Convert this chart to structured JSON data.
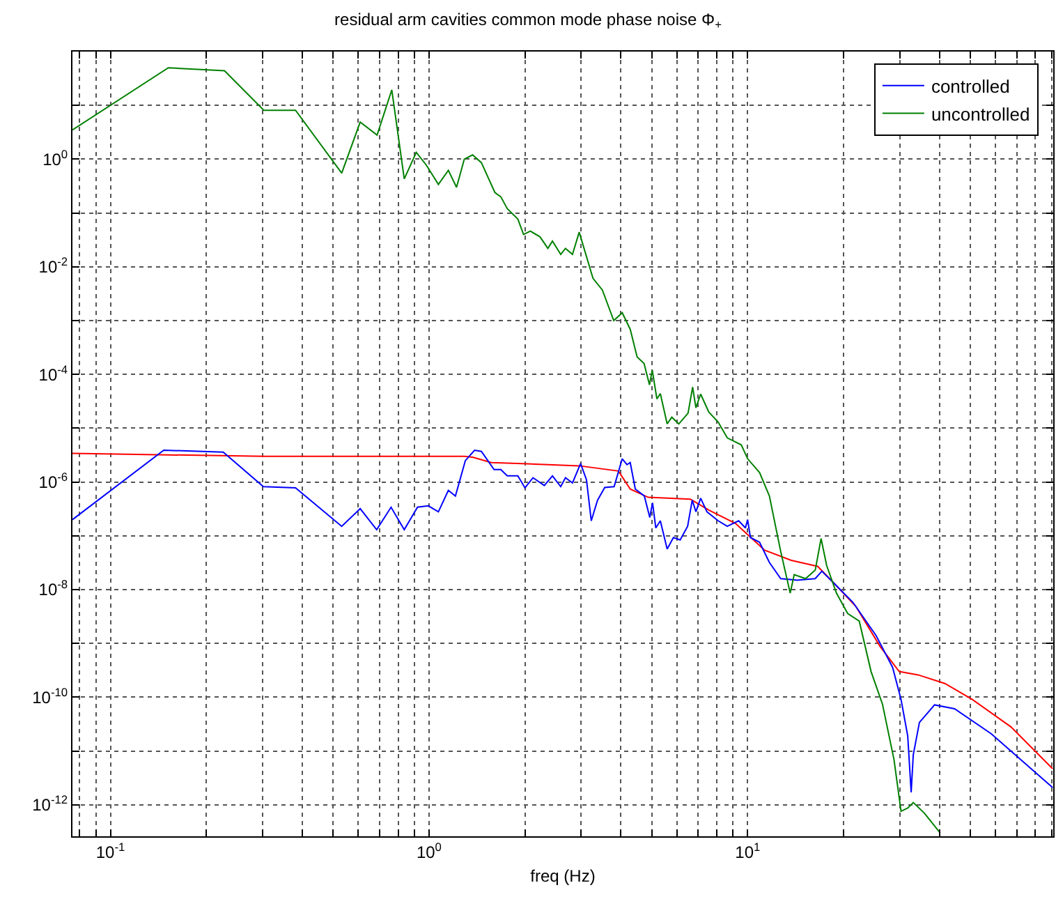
{
  "chart_data": {
    "type": "line",
    "title": "residual arm cavities common mode phase noise Φ$_{+}$",
    "xlabel": "freq (Hz)",
    "log": "xy",
    "grid": true,
    "legend": "top right",
    "marker": "none",
    "line_style": "solid",
    "xlim": [
      0.076,
      91
    ],
    "ylim": [
      2.6e-13,
      100
    ],
    "xticks": [
      {
        "value": 0.08,
        "label": null
      },
      {
        "value": 0.09,
        "label": null
      },
      {
        "value": 0.1,
        "label": "10$^{-1}$"
      },
      {
        "value": 0.2,
        "label": null
      },
      {
        "value": 0.3,
        "label": null
      },
      {
        "value": 0.4,
        "label": null
      },
      {
        "value": 0.5,
        "label": null
      },
      {
        "value": 0.6,
        "label": null
      },
      {
        "value": 0.7,
        "label": null
      },
      {
        "value": 0.8,
        "label": null
      },
      {
        "value": 0.9,
        "label": null
      },
      {
        "value": 1,
        "label": "10$^{0}$"
      },
      {
        "value": 2,
        "label": null
      },
      {
        "value": 3,
        "label": null
      },
      {
        "value": 4,
        "label": null
      },
      {
        "value": 5,
        "label": null
      },
      {
        "value": 6,
        "label": null
      },
      {
        "value": 7,
        "label": null
      },
      {
        "value": 8,
        "label": null
      },
      {
        "value": 9,
        "label": null
      },
      {
        "value": 10,
        "label": "10$^{1}$"
      },
      {
        "value": 20,
        "label": null
      },
      {
        "value": 30,
        "label": null
      },
      {
        "value": 40,
        "label": null
      },
      {
        "value": 50,
        "label": null
      },
      {
        "value": 60,
        "label": null
      },
      {
        "value": 70,
        "label": null
      },
      {
        "value": 80,
        "label": null
      },
      {
        "value": 90,
        "label": null
      }
    ],
    "yticks": [
      {
        "value": 1e-12,
        "label": "10$^{-12}$"
      },
      {
        "value": 1e-11,
        "label": null
      },
      {
        "value": 1e-10,
        "label": "10$^{-10}$"
      },
      {
        "value": 1e-09,
        "label": null
      },
      {
        "value": 1e-08,
        "label": "10$^{-8}$"
      },
      {
        "value": 1e-07,
        "label": null
      },
      {
        "value": 1e-06,
        "label": "10$^{-6}$"
      },
      {
        "value": 1e-05,
        "label": null
      },
      {
        "value": 0.0001,
        "label": "10$^{-4}$"
      },
      {
        "value": 0.001,
        "label": null
      },
      {
        "value": 0.01,
        "label": "10$^{-2}$"
      },
      {
        "value": 0.1,
        "label": null
      },
      {
        "value": 1,
        "label": "10$^{0}$"
      },
      {
        "value": 10,
        "label": null
      }
    ],
    "series": [
      {
        "name": "controlled",
        "color": "#0000ff",
        "x": [
          0.076,
          0.147,
          0.226,
          0.302,
          0.381,
          0.532,
          0.608,
          0.685,
          0.76,
          0.836,
          0.92,
          0.995,
          1.07,
          1.15,
          1.21,
          1.3,
          1.39,
          1.46,
          1.6,
          1.68,
          1.76,
          1.9,
          2.0,
          2.12,
          2.3,
          2.44,
          2.59,
          2.68,
          2.82,
          2.99,
          3.12,
          3.23,
          3.38,
          3.56,
          3.81,
          4.04,
          4.18,
          4.28,
          4.44,
          4.74,
          4.93,
          5.03,
          5.15,
          5.32,
          5.59,
          5.85,
          6.14,
          6.48,
          6.7,
          6.88,
          7.12,
          7.45,
          8.08,
          8.63,
          9.37,
          9.84,
          10.0,
          10.2,
          10.9,
          11.7,
          12.7,
          14.3,
          16.3,
          17.1,
          18.7,
          21.4,
          25.3,
          28.5,
          30.3,
          31.8,
          32.6,
          33.1,
          34.6,
          38.6,
          44.6,
          58.1,
          90.6
        ],
        "values": [
          2e-07,
          3.9e-06,
          3.6e-06,
          8.2e-07,
          7.8e-07,
          1.5e-07,
          3.2e-07,
          1.3e-07,
          3.4e-07,
          1.3e-07,
          3.4e-07,
          3.6e-07,
          2.8e-07,
          7e-07,
          5.5e-07,
          2.5e-06,
          3.9e-06,
          3.7e-06,
          1.7e-06,
          1.7e-06,
          1.3e-06,
          1.3e-06,
          7.8e-07,
          1.2e-06,
          8.6e-07,
          1.3e-06,
          8.2e-07,
          1.2e-06,
          9.6e-07,
          2.2e-06,
          1.1e-06,
          1.9e-07,
          4.6e-07,
          7.9e-07,
          8.2e-07,
          2.7e-06,
          2.1e-06,
          2.3e-06,
          7.4e-07,
          5.5e-07,
          2.2e-07,
          4.1e-07,
          1.4e-07,
          1.9e-07,
          5.7e-08,
          9.3e-08,
          8.4e-08,
          1.5e-07,
          4.6e-07,
          2.8e-07,
          5e-07,
          2.8e-07,
          1.9e-07,
          1.5e-07,
          1.9e-07,
          1.4e-07,
          2e-07,
          9.3e-08,
          7.6e-08,
          3.2e-08,
          1.6e-08,
          1.5e-08,
          1.6e-08,
          2.2e-08,
          1.3e-08,
          5.8e-09,
          1.4e-09,
          3.6e-10,
          9.1e-11,
          1.9e-11,
          1.7e-12,
          8.5e-12,
          3.4e-11,
          7.2e-11,
          6.1e-11,
          2.1e-11,
          2.1e-12
        ]
      },
      {
        "name": "uncontrolled",
        "color": "#008000",
        "x": [
          0.076,
          0.152,
          0.228,
          0.303,
          0.381,
          0.532,
          0.608,
          0.687,
          0.764,
          0.836,
          0.912,
          0.98,
          1.07,
          1.15,
          1.22,
          1.29,
          1.37,
          1.46,
          1.61,
          1.68,
          1.76,
          1.9,
          1.98,
          2.08,
          2.23,
          2.36,
          2.44,
          2.59,
          2.68,
          2.82,
          2.96,
          3.27,
          3.5,
          3.8,
          4.04,
          4.28,
          4.5,
          4.73,
          4.92,
          5.02,
          5.19,
          5.32,
          5.59,
          5.78,
          6.08,
          6.5,
          6.72,
          6.88,
          7.12,
          7.55,
          8.08,
          8.63,
          9.55,
          10.0,
          10.9,
          11.7,
          12.7,
          13.6,
          14.0,
          15.2,
          16.3,
          17.0,
          17.7,
          19.0,
          20.6,
          22.4,
          24.4,
          26.5,
          28.8,
          30.3,
          31.8,
          33.1,
          35.8,
          40.2
        ],
        "values": [
          3.5,
          50,
          44,
          8.1,
          8.1,
          0.55,
          4.9,
          2.8,
          19.4,
          0.43,
          1.34,
          0.78,
          0.34,
          0.62,
          0.3,
          1.0,
          1.2,
          0.86,
          0.24,
          0.2,
          0.12,
          0.077,
          0.04,
          0.046,
          0.036,
          0.022,
          0.03,
          0.017,
          0.022,
          0.017,
          0.044,
          0.0061,
          0.0037,
          0.001,
          0.0014,
          0.00069,
          0.00021,
          0.00016,
          6.4e-05,
          0.00012,
          3.5e-05,
          4.4e-05,
          1.2e-05,
          1.6e-05,
          1.2e-05,
          1.9e-05,
          5.8e-05,
          2.4e-05,
          4.3e-05,
          2e-05,
          1.3e-05,
          6.6e-06,
          4.9e-06,
          2.7e-06,
          1.5e-06,
          5.5e-07,
          5.1e-08,
          8.6e-09,
          1.9e-08,
          1.6e-08,
          2.3e-08,
          8.9e-08,
          2.8e-08,
          8.6e-09,
          3.6e-09,
          2.6e-09,
          3e-10,
          7.4e-11,
          6.9e-12,
          7.6e-13,
          8.7e-13,
          1.1e-12,
          7.1e-13,
          3e-13
        ]
      },
      {
        "color": "#ff0000",
        "x": [
          0.076,
          0.304,
          1.29,
          1.37,
          1.57,
          2.96,
          3.93,
          4.28,
          4.87,
          6.61,
          7.55,
          9.16,
          11.3,
          13.7,
          16.6,
          18.7,
          21.9,
          26.0,
          29.9,
          34.3,
          41.6,
          50.7,
          67.1,
          90.6
        ],
        "values": [
          3.4e-06,
          3e-06,
          3e-06,
          2.9e-06,
          2.3e-06,
          2e-06,
          1.6e-06,
          7.4e-07,
          5.2e-07,
          4.8e-07,
          3e-07,
          1.7e-07,
          5.4e-08,
          3.5e-08,
          2.7e-08,
          1.3e-08,
          4.8e-09,
          8.9e-10,
          3e-10,
          2.6e-10,
          1.8e-10,
          9.1e-11,
          2.8e-11,
          4.7e-12
        ]
      }
    ]
  }
}
